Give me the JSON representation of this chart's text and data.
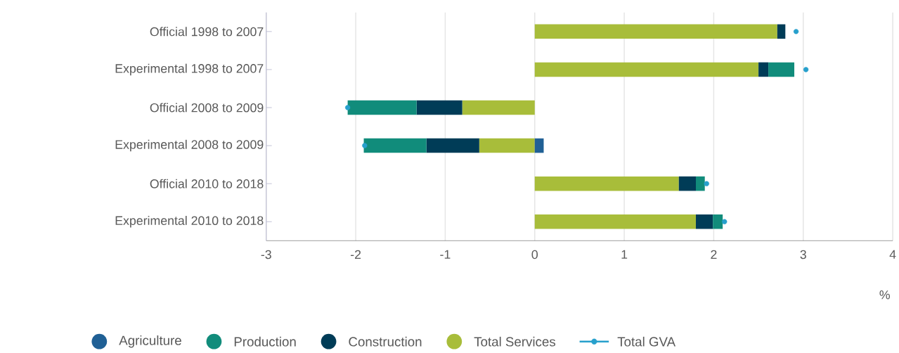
{
  "chart_data": {
    "type": "bar",
    "orientation": "horizontal",
    "stacked": true,
    "categories": [
      "Official 1998 to 2007",
      "Experimental 1998 to 2007",
      "Official 2008 to 2009",
      "Experimental 2008 to 2009",
      "Official 2010 to 2018",
      "Experimental 2010 to 2018"
    ],
    "series": [
      {
        "name": "Total Services",
        "color": "#a8bd3a",
        "values": [
          2.71,
          2.5,
          -0.81,
          -0.62,
          1.61,
          1.8
        ]
      },
      {
        "name": "Construction",
        "color": "#003c57",
        "values": [
          0.09,
          0.11,
          -0.51,
          -0.59,
          0.19,
          0.19
        ]
      },
      {
        "name": "Production",
        "color": "#118c7b",
        "values": [
          null,
          0.29,
          -0.77,
          -0.7,
          0.1,
          0.11
        ]
      },
      {
        "name": "Agriculture",
        "color": "#206095",
        "values": [
          null,
          null,
          null,
          0.1,
          null,
          null
        ]
      },
      {
        "name": "Total GVA",
        "type": "scatter",
        "color": "#27a0cc",
        "marker": "circle",
        "values": [
          2.92,
          3.03,
          -2.09,
          -1.9,
          1.92,
          2.12
        ]
      }
    ],
    "xlim": [
      -3,
      4
    ],
    "xticks": [
      -3,
      -2,
      -1,
      0,
      1,
      2,
      3,
      4
    ],
    "xlabel": "%",
    "grid": "x",
    "legend": "bottom"
  }
}
